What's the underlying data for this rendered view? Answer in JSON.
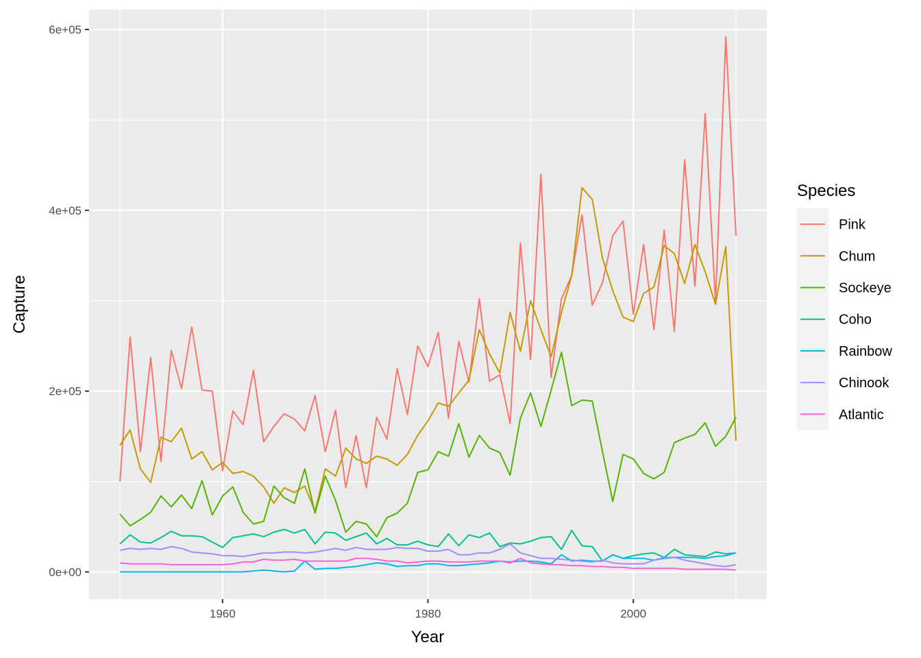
{
  "chart_data": {
    "type": "line",
    "xlabel": "Year",
    "ylabel": "Capture",
    "xlim": [
      1947,
      2013
    ],
    "ylim": [
      -30000,
      622000
    ],
    "x_ticks": [
      1960,
      1980,
      2000
    ],
    "x_tick_labels": [
      "1960",
      "1980",
      "2000"
    ],
    "y_ticks": [
      0,
      200000,
      400000,
      600000
    ],
    "y_tick_labels": [
      "0e+00",
      "2e+05",
      "4e+05",
      "6e+05"
    ],
    "grid": true,
    "legend": {
      "title": "Species",
      "placement": "right"
    },
    "x": [
      1950,
      1951,
      1952,
      1953,
      1954,
      1955,
      1956,
      1957,
      1958,
      1959,
      1960,
      1961,
      1962,
      1963,
      1964,
      1965,
      1966,
      1967,
      1968,
      1969,
      1970,
      1971,
      1972,
      1973,
      1974,
      1975,
      1976,
      1977,
      1978,
      1979,
      1980,
      1981,
      1982,
      1983,
      1984,
      1985,
      1986,
      1987,
      1988,
      1989,
      1990,
      1991,
      1992,
      1993,
      1994,
      1995,
      1996,
      1997,
      1998,
      1999,
      2000,
      2001,
      2002,
      2003,
      2004,
      2005,
      2006,
      2007,
      2008,
      2009,
      2010
    ],
    "series": [
      {
        "name": "Pink",
        "color": "#F8766D",
        "values": [
          100000,
          260000,
          133000,
          237000,
          122000,
          245000,
          203000,
          271000,
          201000,
          200000,
          112000,
          178000,
          163000,
          223000,
          144000,
          161000,
          175000,
          169000,
          156000,
          195000,
          133000,
          179000,
          93000,
          151000,
          93000,
          171000,
          147000,
          225000,
          174000,
          250000,
          227000,
          265000,
          170000,
          255000,
          210000,
          302000,
          211000,
          218000,
          164000,
          364000,
          235000,
          440000,
          215000,
          302000,
          328000,
          395000,
          295000,
          320000,
          372000,
          388000,
          285000,
          362000,
          268000,
          378000,
          266000,
          456000,
          316000,
          507000,
          298000,
          592000,
          372000
        ]
      },
      {
        "name": "Chum",
        "color": "#C49A00",
        "values": [
          140000,
          157000,
          114000,
          99000,
          149000,
          144000,
          159000,
          125000,
          133000,
          113000,
          121000,
          109000,
          111000,
          106000,
          94000,
          76000,
          93000,
          88000,
          95000,
          67000,
          114000,
          106000,
          137000,
          125000,
          120000,
          128000,
          125000,
          118000,
          130000,
          151000,
          167000,
          187000,
          183000,
          198000,
          212000,
          268000,
          241000,
          220000,
          287000,
          244000,
          300000,
          268000,
          238000,
          287000,
          328000,
          425000,
          412000,
          347000,
          311000,
          282000,
          277000,
          308000,
          315000,
          361000,
          352000,
          319000,
          362000,
          332000,
          296000,
          360000,
          145000
        ]
      },
      {
        "name": "Sockeye",
        "color": "#53B400",
        "values": [
          64000,
          51000,
          58000,
          66000,
          84000,
          72000,
          85000,
          70000,
          101000,
          63000,
          84000,
          94000,
          66000,
          53000,
          56000,
          95000,
          82000,
          76000,
          114000,
          65000,
          106000,
          79000,
          44000,
          56000,
          53000,
          39000,
          60000,
          65000,
          76000,
          110000,
          113000,
          133000,
          128000,
          164000,
          127000,
          151000,
          137000,
          132000,
          107000,
          170000,
          198000,
          161000,
          201000,
          243000,
          184000,
          190000,
          189000,
          133000,
          78000,
          130000,
          125000,
          109000,
          103000,
          110000,
          143000,
          148000,
          152000,
          165000,
          139000,
          150000,
          171000
        ]
      },
      {
        "name": "Coho",
        "color": "#00C094",
        "values": [
          31000,
          41000,
          33000,
          32000,
          38000,
          45000,
          40000,
          40000,
          39000,
          33000,
          27000,
          38000,
          40000,
          42000,
          39000,
          44000,
          47000,
          43000,
          47000,
          31000,
          44000,
          43000,
          35000,
          39000,
          43000,
          31000,
          37000,
          30000,
          30000,
          34000,
          30000,
          28000,
          42000,
          29000,
          41000,
          38000,
          43000,
          28000,
          32000,
          31000,
          34000,
          38000,
          39000,
          25000,
          46000,
          29000,
          28000,
          12000,
          19000,
          15000,
          18000,
          20000,
          21000,
          16000,
          25000,
          19000,
          18000,
          17000,
          22000,
          20000,
          21000
        ]
      },
      {
        "name": "Rainbow",
        "color": "#00B6EB",
        "values": [
          0,
          0,
          0,
          0,
          0,
          0,
          0,
          0,
          0,
          0,
          0,
          0,
          0,
          1000,
          2000,
          1000,
          0,
          1000,
          12000,
          3000,
          4000,
          4000,
          5000,
          6000,
          8000,
          10000,
          9000,
          6000,
          7000,
          7000,
          9000,
          9000,
          7000,
          7000,
          8000,
          9000,
          10000,
          12000,
          11000,
          12000,
          12000,
          11000,
          9000,
          19000,
          12000,
          13000,
          12000,
          12000,
          19000,
          15000,
          15000,
          15000,
          13000,
          15000,
          16000,
          16000,
          16000,
          15000,
          17000,
          18000,
          21000
        ]
      },
      {
        "name": "Chinook",
        "color": "#A58AFF",
        "values": [
          24000,
          26000,
          25000,
          26000,
          25000,
          28000,
          26000,
          22000,
          21000,
          20000,
          18000,
          18000,
          17000,
          19000,
          21000,
          21000,
          22000,
          22000,
          21000,
          22000,
          24000,
          26000,
          24000,
          27000,
          25000,
          25000,
          25000,
          27000,
          26000,
          26000,
          23000,
          23000,
          25000,
          19000,
          19000,
          21000,
          21000,
          25000,
          31000,
          21000,
          18000,
          15000,
          15000,
          14000,
          13000,
          12000,
          11000,
          13000,
          10000,
          9000,
          9000,
          9000,
          13000,
          16000,
          16000,
          13000,
          11000,
          9000,
          7000,
          6000,
          8000
        ]
      },
      {
        "name": "Atlantic",
        "color": "#FB61D7",
        "values": [
          10000,
          9000,
          9000,
          9000,
          9000,
          8000,
          8000,
          8000,
          8000,
          8000,
          8000,
          9000,
          11000,
          11000,
          14000,
          13000,
          13000,
          14000,
          12000,
          12000,
          12000,
          12000,
          12000,
          15000,
          15000,
          14000,
          12000,
          12000,
          10000,
          11000,
          12000,
          12000,
          11000,
          11000,
          11000,
          12000,
          12000,
          12000,
          10000,
          15000,
          10000,
          9000,
          8000,
          8000,
          7000,
          7000,
          6000,
          6000,
          5000,
          5000,
          4000,
          4000,
          4000,
          4000,
          4000,
          3000,
          3000,
          3000,
          3000,
          3000,
          2000
        ]
      }
    ]
  }
}
